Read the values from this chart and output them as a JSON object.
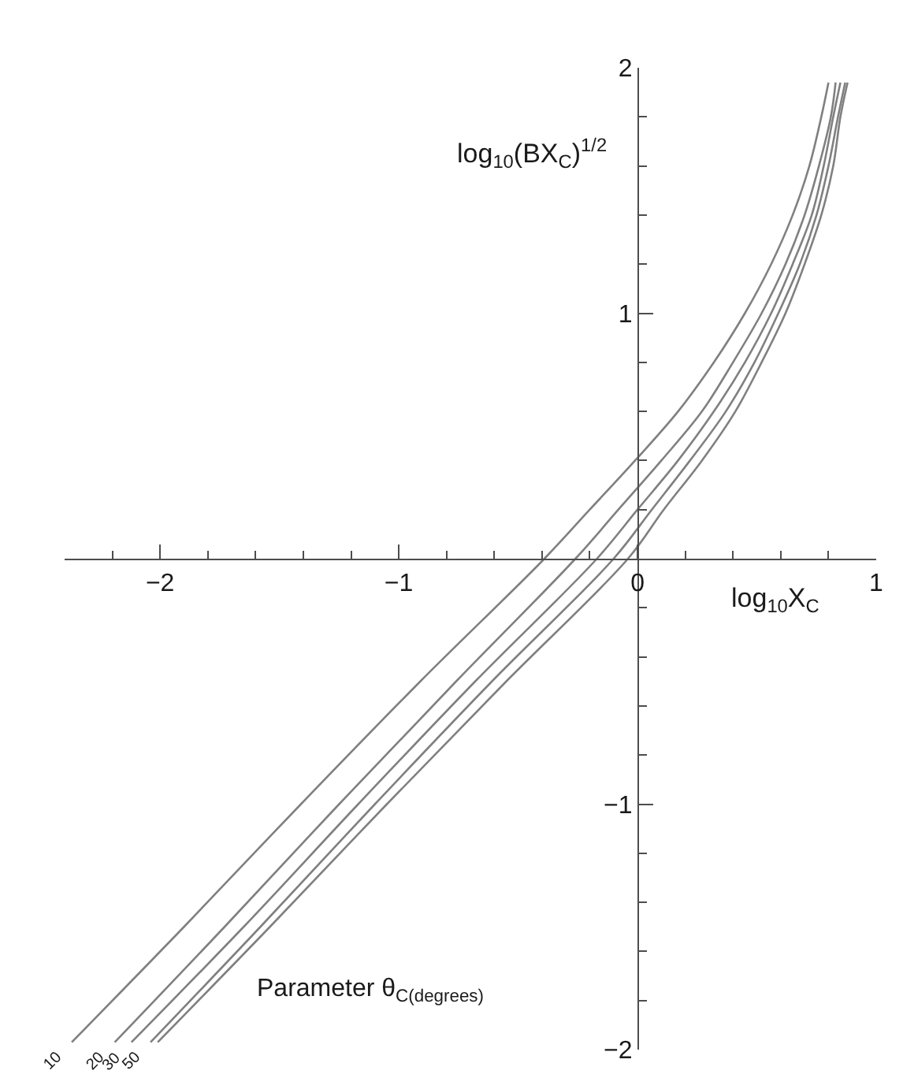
{
  "chart_data": {
    "type": "line",
    "xlabel": "log$_{10}$X$_{C}$",
    "ylabel": "log$_{10}$(BX$_{C}$)$^{1/2}$",
    "annotations": [
      "Parameter θ$_{C(degrees)}$"
    ],
    "xlim": [
      -2.4,
      1
    ],
    "ylim": [
      -2,
      2
    ],
    "xticks": [
      {
        "value": -2.2,
        "label": null
      },
      {
        "value": -2,
        "label": "−2"
      },
      {
        "value": -1.8,
        "label": null
      },
      {
        "value": -1.6,
        "label": null
      },
      {
        "value": -1.4,
        "label": null
      },
      {
        "value": -1.2,
        "label": null
      },
      {
        "value": -1,
        "label": "−1"
      },
      {
        "value": -0.8,
        "label": null
      },
      {
        "value": -0.6,
        "label": null
      },
      {
        "value": -0.4,
        "label": null
      },
      {
        "value": -0.2,
        "label": null
      },
      0,
      {
        "value": 0.2,
        "label": null
      },
      {
        "value": 0.4,
        "label": null
      },
      {
        "value": 0.6,
        "label": null
      },
      {
        "value": 0.8,
        "label": null
      },
      1
    ],
    "yticks": [
      {
        "value": -2,
        "label": "−2"
      },
      {
        "value": -1.8,
        "label": null
      },
      {
        "value": -1.6,
        "label": null
      },
      {
        "value": -1.4,
        "label": null
      },
      {
        "value": -1.2,
        "label": null
      },
      {
        "value": -1,
        "label": "−1"
      },
      {
        "value": -0.8,
        "label": null
      },
      {
        "value": -0.6,
        "label": null
      },
      {
        "value": -0.4,
        "label": null
      },
      {
        "value": -0.2,
        "label": null
      },
      {
        "value": 0.2,
        "label": null
      },
      {
        "value": 0.4,
        "label": null
      },
      {
        "value": 0.6,
        "label": null
      },
      {
        "value": 0.8,
        "label": null
      },
      1,
      {
        "value": 1.2,
        "label": null
      },
      {
        "value": 1.4,
        "label": null
      },
      {
        "value": 1.6,
        "label": null
      },
      {
        "value": 1.8,
        "label": null
      },
      2
    ],
    "marker": "none",
    "line_style": "solid",
    "series": [
      {
        "name": "10",
        "color": "#808080",
        "x": [
          -2.37,
          -1.9,
          -1.41,
          -0.91,
          -0.39,
          -0.2,
          -0.01,
          0.17,
          0.32,
          0.45,
          0.56,
          0.65,
          0.72,
          0.77,
          0.8
        ],
        "values": [
          -1.97,
          -1.5,
          -1.0,
          -0.5,
          0,
          0.2,
          0.4,
          0.6,
          0.8,
          1.0,
          1.2,
          1.4,
          1.6,
          1.8,
          1.94
        ]
      },
      {
        "name": "20",
        "color": "#808080",
        "x": [
          -2.19,
          -1.73,
          -1.25,
          -0.76,
          -0.26,
          -0.08,
          0.1,
          0.27,
          0.4,
          0.52,
          0.62,
          0.7,
          0.76,
          0.81,
          0.83
        ],
        "values": [
          -1.97,
          -1.5,
          -1.0,
          -0.5,
          0,
          0.2,
          0.4,
          0.6,
          0.8,
          1.0,
          1.2,
          1.4,
          1.6,
          1.8,
          1.94
        ]
      },
      {
        "name": "30",
        "color": "#808080",
        "x": [
          -2.12,
          -1.65,
          -1.17,
          -0.68,
          -0.17,
          0.0,
          0.17,
          0.32,
          0.45,
          0.56,
          0.65,
          0.73,
          0.78,
          0.82,
          0.85
        ],
        "values": [
          -1.97,
          -1.5,
          -1.0,
          -0.5,
          0,
          0.2,
          0.4,
          0.6,
          0.8,
          1.0,
          1.2,
          1.4,
          1.6,
          1.8,
          1.94
        ]
      },
      {
        "name": "50",
        "color": "#808080",
        "x": [
          -2.04,
          -1.58,
          -1.1,
          -0.61,
          -0.1,
          0.06,
          0.22,
          0.37,
          0.49,
          0.59,
          0.68,
          0.75,
          0.8,
          0.84,
          0.87
        ],
        "values": [
          -1.97,
          -1.5,
          -1.0,
          -0.5,
          0,
          0.2,
          0.4,
          0.6,
          0.8,
          1.0,
          1.2,
          1.4,
          1.6,
          1.8,
          1.94
        ]
      },
      {
        "color": "#808080",
        "x": [
          -2.01,
          -1.54,
          -1.05,
          -0.55,
          -0.04,
          0.11,
          0.27,
          0.41,
          0.52,
          0.62,
          0.7,
          0.77,
          0.82,
          0.85,
          0.88
        ],
        "values": [
          -1.97,
          -1.5,
          -1.0,
          -0.5,
          0,
          0.2,
          0.4,
          0.6,
          0.8,
          1.0,
          1.2,
          1.4,
          1.6,
          1.8,
          1.94
        ]
      }
    ]
  }
}
